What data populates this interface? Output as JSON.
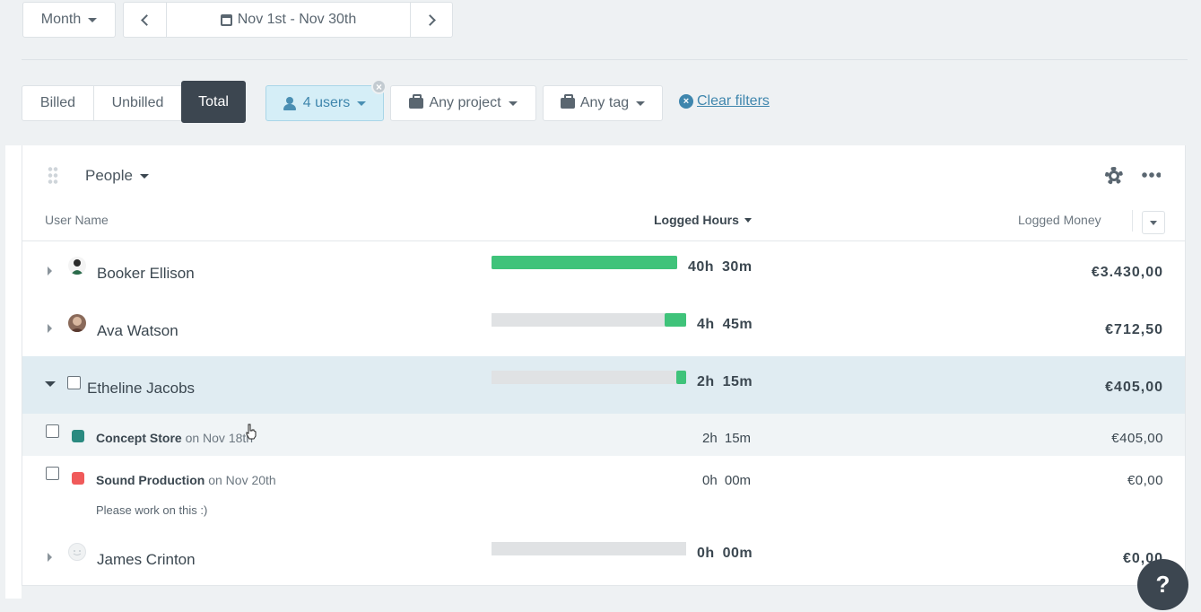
{
  "toolbar": {
    "period_label": "Month",
    "date_range": "Nov 1st - Nov 30th"
  },
  "billing_tabs": [
    {
      "label": "Billed",
      "active": false
    },
    {
      "label": "Unbilled",
      "active": false
    },
    {
      "label": "Total",
      "active": true
    }
  ],
  "filters": {
    "users": "4 users",
    "project": "Any project",
    "tag": "Any tag",
    "clear": "Clear filters"
  },
  "panel": {
    "group_by": "People",
    "columns": {
      "user_name": "User Name",
      "logged_hours": "Logged Hours",
      "logged_money": "Logged Money"
    },
    "rows": [
      {
        "name": "Booker Ellison",
        "hours": "40h 30m",
        "money": "€3.430,00",
        "bar_fraction": 1.0,
        "expanded": false
      },
      {
        "name": "Ava Watson",
        "hours": "4h 45m",
        "money": "€712,50",
        "bar_fraction": 0.117,
        "expanded": false
      },
      {
        "name": "Etheline Jacobs",
        "hours": "2h 15m",
        "money": "€405,00",
        "bar_fraction": 0.056,
        "expanded": true,
        "entries": [
          {
            "project": "Concept Store",
            "date": "on Nov 18th",
            "hours": "2h 15m",
            "money": "€405,00",
            "color": "#2a8a80",
            "note": ""
          },
          {
            "project": "Sound Production",
            "date": "on Nov 20th",
            "hours": "0h 00m",
            "money": "€0,00",
            "color": "#f05a5a",
            "note": "Please work on this :)"
          }
        ]
      },
      {
        "name": "James Crinton",
        "hours": "0h 00m",
        "money": "€0,00",
        "bar_fraction": 0.0,
        "expanded": false
      }
    ]
  },
  "help_label": "?"
}
